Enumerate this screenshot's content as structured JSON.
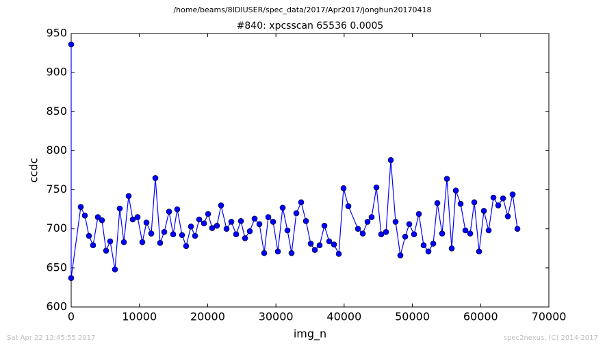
{
  "chart_data": {
    "type": "line",
    "suptitle": "/home/beams/8IDIUSER/spec_data/2017/Apr2017/jonghun20170418",
    "title": "#840: xpcsscan 65536 0.0005",
    "x_label": "img_n",
    "y_label": "ccdc",
    "footer_left": "Sat Apr 22 13:45:55 2017",
    "footer_right": "spec2nexus, (C) 2014-2017",
    "xlim": [
      0,
      70000
    ],
    "xticks": [
      0,
      10000,
      20000,
      30000,
      40000,
      50000,
      60000,
      70000
    ],
    "ylim": [
      600,
      950
    ],
    "yticks": [
      600,
      650,
      700,
      750,
      800,
      850,
      900,
      950
    ],
    "grid": false,
    "x": [
      0,
      0,
      1404,
      2006,
      2608,
      3209,
      3911,
      4513,
      5115,
      5717,
      6419,
      7121,
      7722,
      8424,
      9026,
      9728,
      10430,
      11032,
      11734,
      12336,
      13038,
      13640,
      14342,
      14944,
      15545,
      16247,
      16849,
      17551,
      18153,
      18755,
      19457,
      20059,
      20660,
      21362,
      21964,
      22766,
      23468,
      24170,
      24872,
      25474,
      26176,
      26878,
      27580,
      28282,
      28884,
      29586,
      30288,
      30990,
      31692,
      32293,
      32995,
      33697,
      34400,
      35102,
      35703,
      36405,
      37107,
      37809,
      38511,
      39213,
      39915,
      40617,
      42021,
      42723,
      43425,
      44027,
      44729,
      45431,
      46133,
      46835,
      47537,
      48239,
      48941,
      49543,
      50245,
      50947,
      51649,
      52351,
      53053,
      53655,
      54357,
      55059,
      55761,
      56363,
      57065,
      57767,
      58469,
      59071,
      59773,
      60475,
      61177,
      61879,
      62581,
      63283,
      63985,
      64687,
      65389
    ],
    "series": [
      {
        "color": "#0000ff",
        "values": [
          936,
          637,
          728,
          717,
          691,
          679,
          715,
          711,
          672,
          684,
          648,
          726,
          683,
          742,
          712,
          715,
          683,
          708,
          694,
          765,
          682,
          696,
          722,
          693,
          725,
          692,
          678,
          703,
          691,
          712,
          707,
          719,
          701,
          704,
          730,
          700,
          709,
          693,
          710,
          688,
          697,
          713,
          706,
          669,
          715,
          709,
          671,
          727,
          698,
          669,
          720,
          734,
          710,
          681,
          673,
          679,
          704,
          684,
          680,
          668,
          752,
          729,
          700,
          694,
          709,
          715,
          753,
          693,
          696,
          788,
          709,
          666,
          690,
          706,
          693,
          719,
          679,
          671,
          681,
          733,
          694,
          764,
          675,
          749,
          732,
          698,
          694,
          734,
          671,
          723,
          698,
          740,
          730,
          739,
          716,
          744,
          700
        ]
      }
    ]
  }
}
